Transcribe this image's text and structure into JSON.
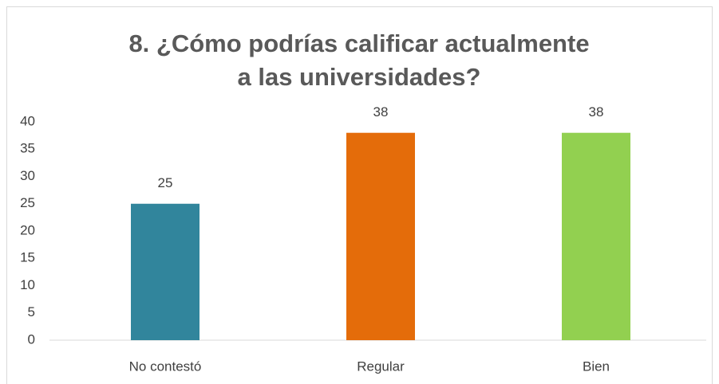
{
  "chart_data": {
    "type": "bar",
    "title": "8. ¿Cómo podrías calificar actualmente a las universidades?",
    "categories": [
      "No contestó",
      "Regular",
      "Bien"
    ],
    "values": [
      25,
      38,
      38
    ],
    "colors": [
      "#31859c",
      "#e46c0a",
      "#92d050"
    ],
    "ylim": [
      0,
      40
    ],
    "yticks": [
      0,
      5,
      10,
      15,
      20,
      25,
      30,
      35,
      40
    ],
    "grid": false
  }
}
